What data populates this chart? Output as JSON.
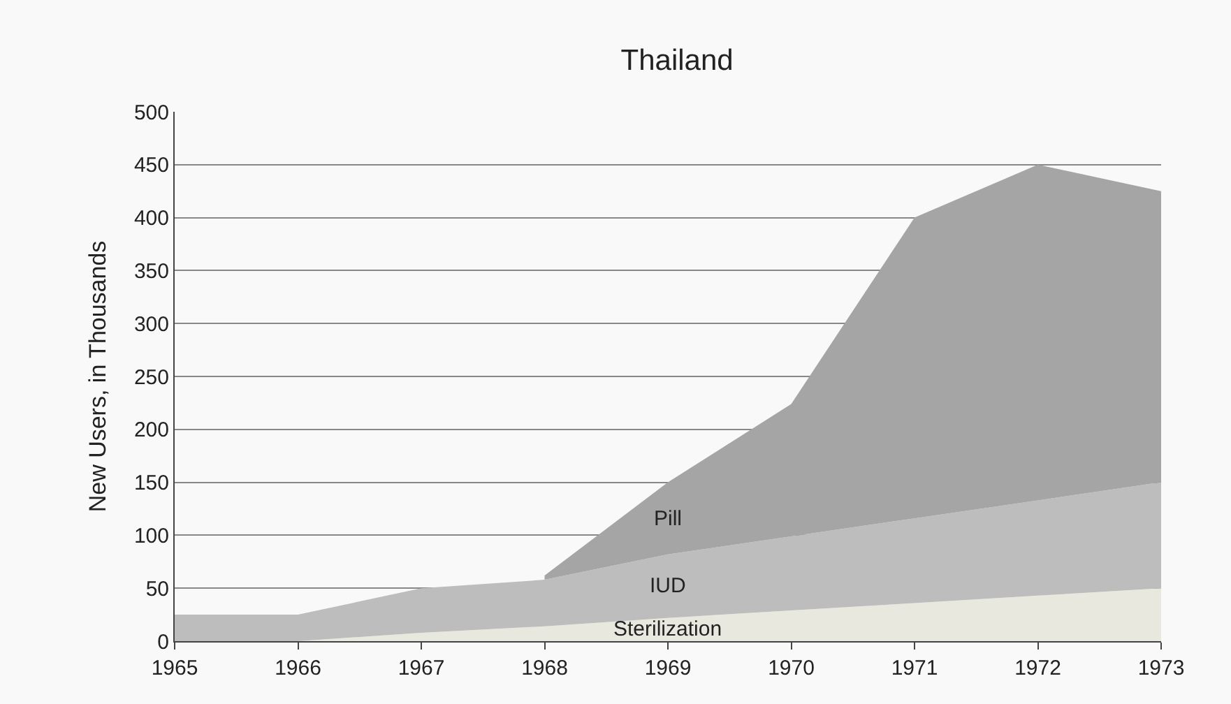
{
  "chart_data": {
    "type": "area",
    "title": "Thailand",
    "ylabel": "New Users, in Thousands",
    "x": [
      1965,
      1966,
      1967,
      1968,
      1969,
      1970,
      1971,
      1972,
      1973
    ],
    "stacked": true,
    "series": [
      {
        "name": "Sterilization",
        "color": "#e9e8de",
        "values": [
          0,
          0,
          8,
          14,
          22,
          29,
          36,
          43,
          50
        ]
      },
      {
        "name": "IUD",
        "color": "#bdbdbd",
        "values": [
          25,
          25,
          42,
          44,
          60,
          70,
          80,
          90,
          100
        ]
      },
      {
        "name": "Pill",
        "color": "#a5a5a5",
        "values": [
          null,
          null,
          null,
          4,
          68,
          125,
          284,
          317,
          275
        ]
      }
    ],
    "xlim": [
      1965,
      1973
    ],
    "xticks": [
      1965,
      1966,
      1967,
      1968,
      1969,
      1970,
      1971,
      1972,
      1973
    ],
    "ylim": [
      0,
      500
    ],
    "yticks": [
      0,
      50,
      100,
      150,
      200,
      250,
      300,
      350,
      400,
      450,
      500
    ],
    "grid": "y",
    "legend": false
  }
}
